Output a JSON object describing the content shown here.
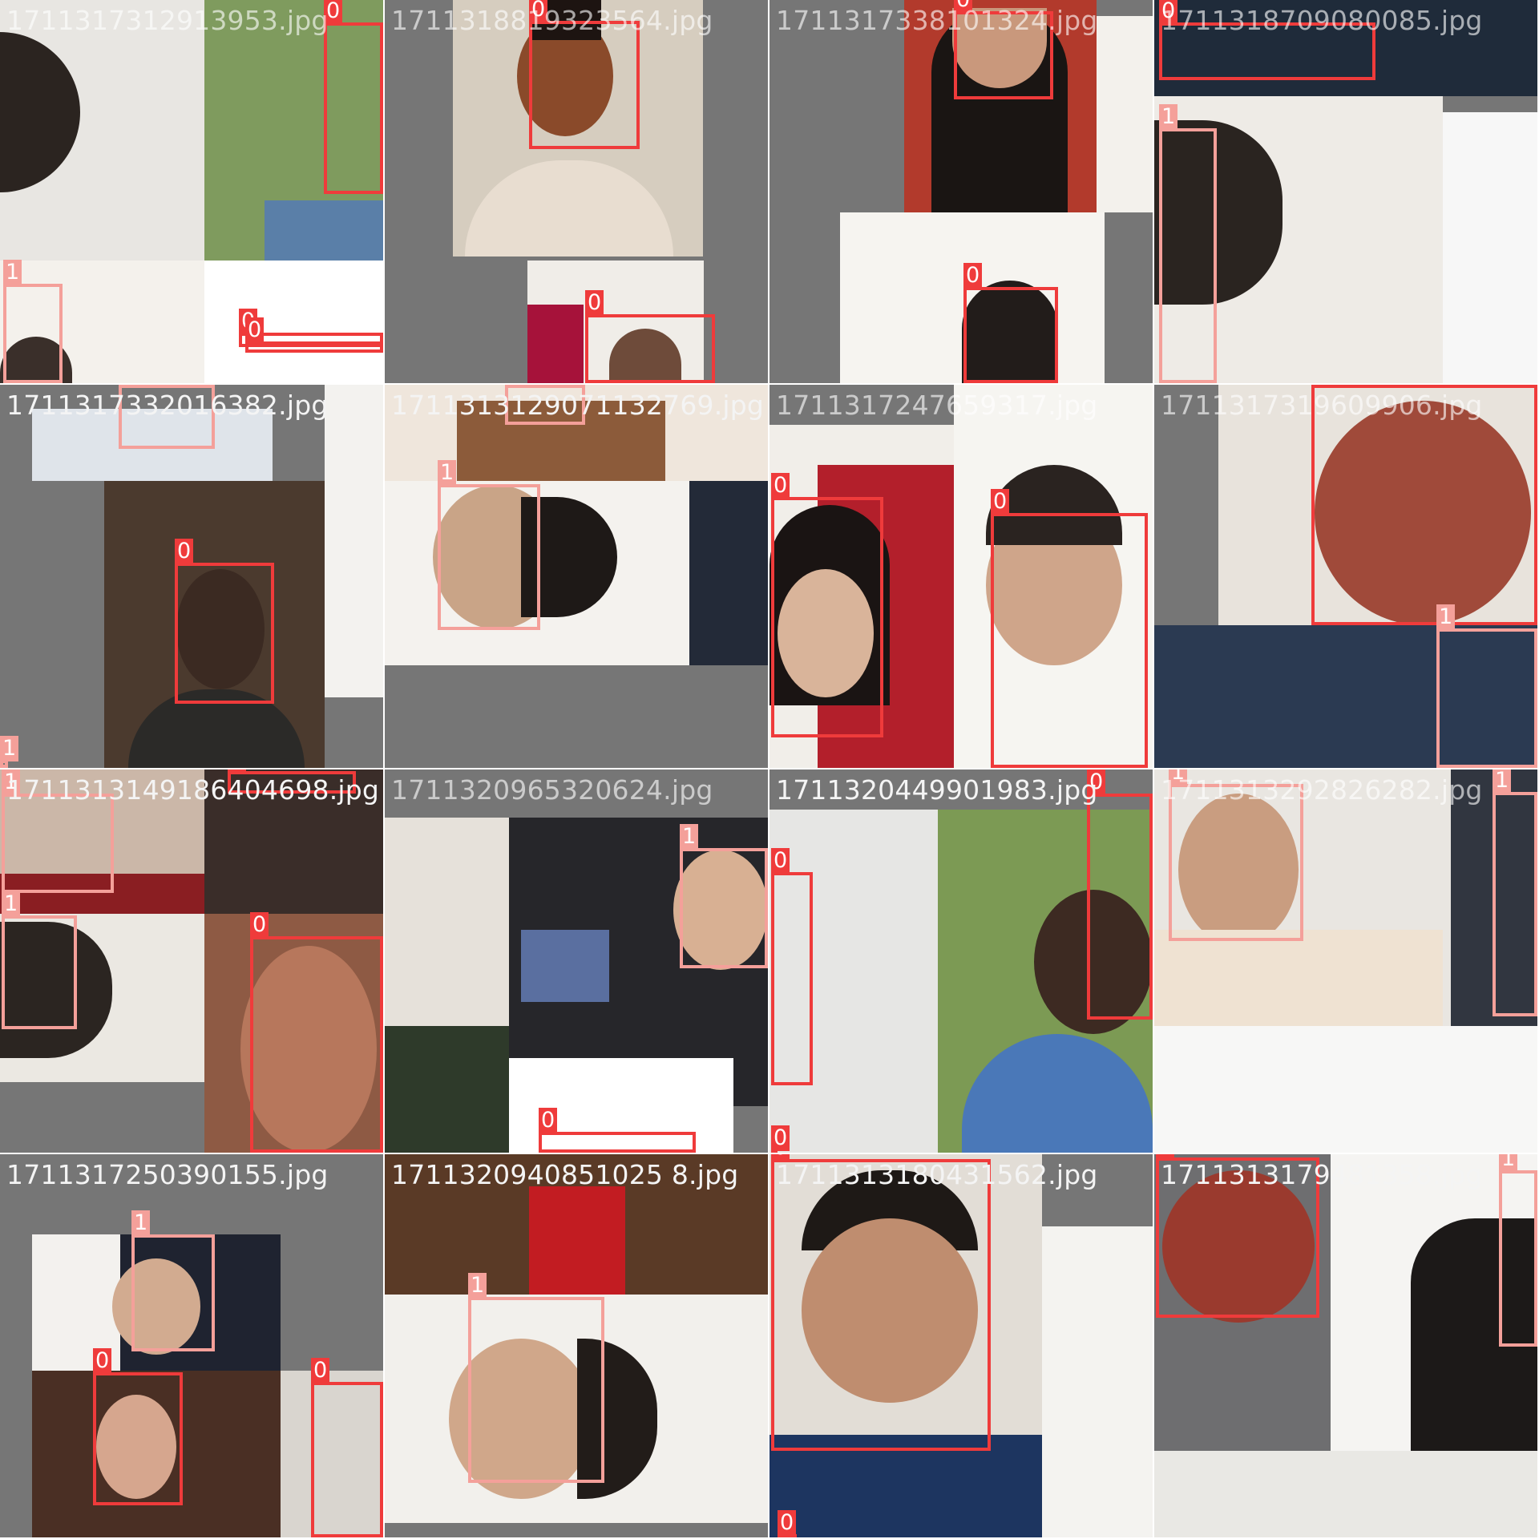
{
  "mosaic": {
    "tiles": [
      {
        "filename": "1711317312913953.jpg",
        "labels": [
          "0",
          "1",
          "0",
          "0"
        ]
      },
      {
        "filename": "1711318819323564.jpg",
        "labels": [
          "0",
          "0"
        ]
      },
      {
        "filename": "1711317338101324.jpg",
        "labels": [
          "0",
          "0"
        ]
      },
      {
        "filename": "1711318709080085.jpg",
        "labels": [
          "0",
          "1"
        ]
      },
      {
        "filename": "1711317332016382.jpg",
        "labels": [
          "1",
          "0",
          "1"
        ]
      },
      {
        "filename": "1711313129071132769.jpg",
        "labels": [
          "1",
          "1"
        ]
      },
      {
        "filename": "1711317247659317.jpg",
        "labels": [
          "0",
          "0"
        ]
      },
      {
        "filename": "1711317319609906.jpg",
        "labels": [
          "0",
          "1"
        ]
      },
      {
        "filename": "1711313149186404698.jpg",
        "labels": [
          "1",
          "1",
          "0",
          "0"
        ]
      },
      {
        "filename": "1711320965320624.jpg",
        "labels": [
          "1",
          "0"
        ]
      },
      {
        "filename": "1711320449901983.jpg",
        "labels": [
          "0",
          "0",
          "0"
        ]
      },
      {
        "filename": "1711313292826282.jpg",
        "labels": [
          "1",
          "1"
        ]
      },
      {
        "filename": "1711317250390155.jpg",
        "labels": [
          "1",
          "0",
          "0"
        ]
      },
      {
        "filename": "1711320940851025 8.jpg",
        "labels": [
          "1"
        ]
      },
      {
        "filename": "1711313180431562.jpg",
        "labels": [
          "0",
          "0"
        ]
      },
      {
        "filename": "1711313179481358.jpg",
        "labels": [
          "0",
          "1",
          "1"
        ]
      }
    ]
  }
}
